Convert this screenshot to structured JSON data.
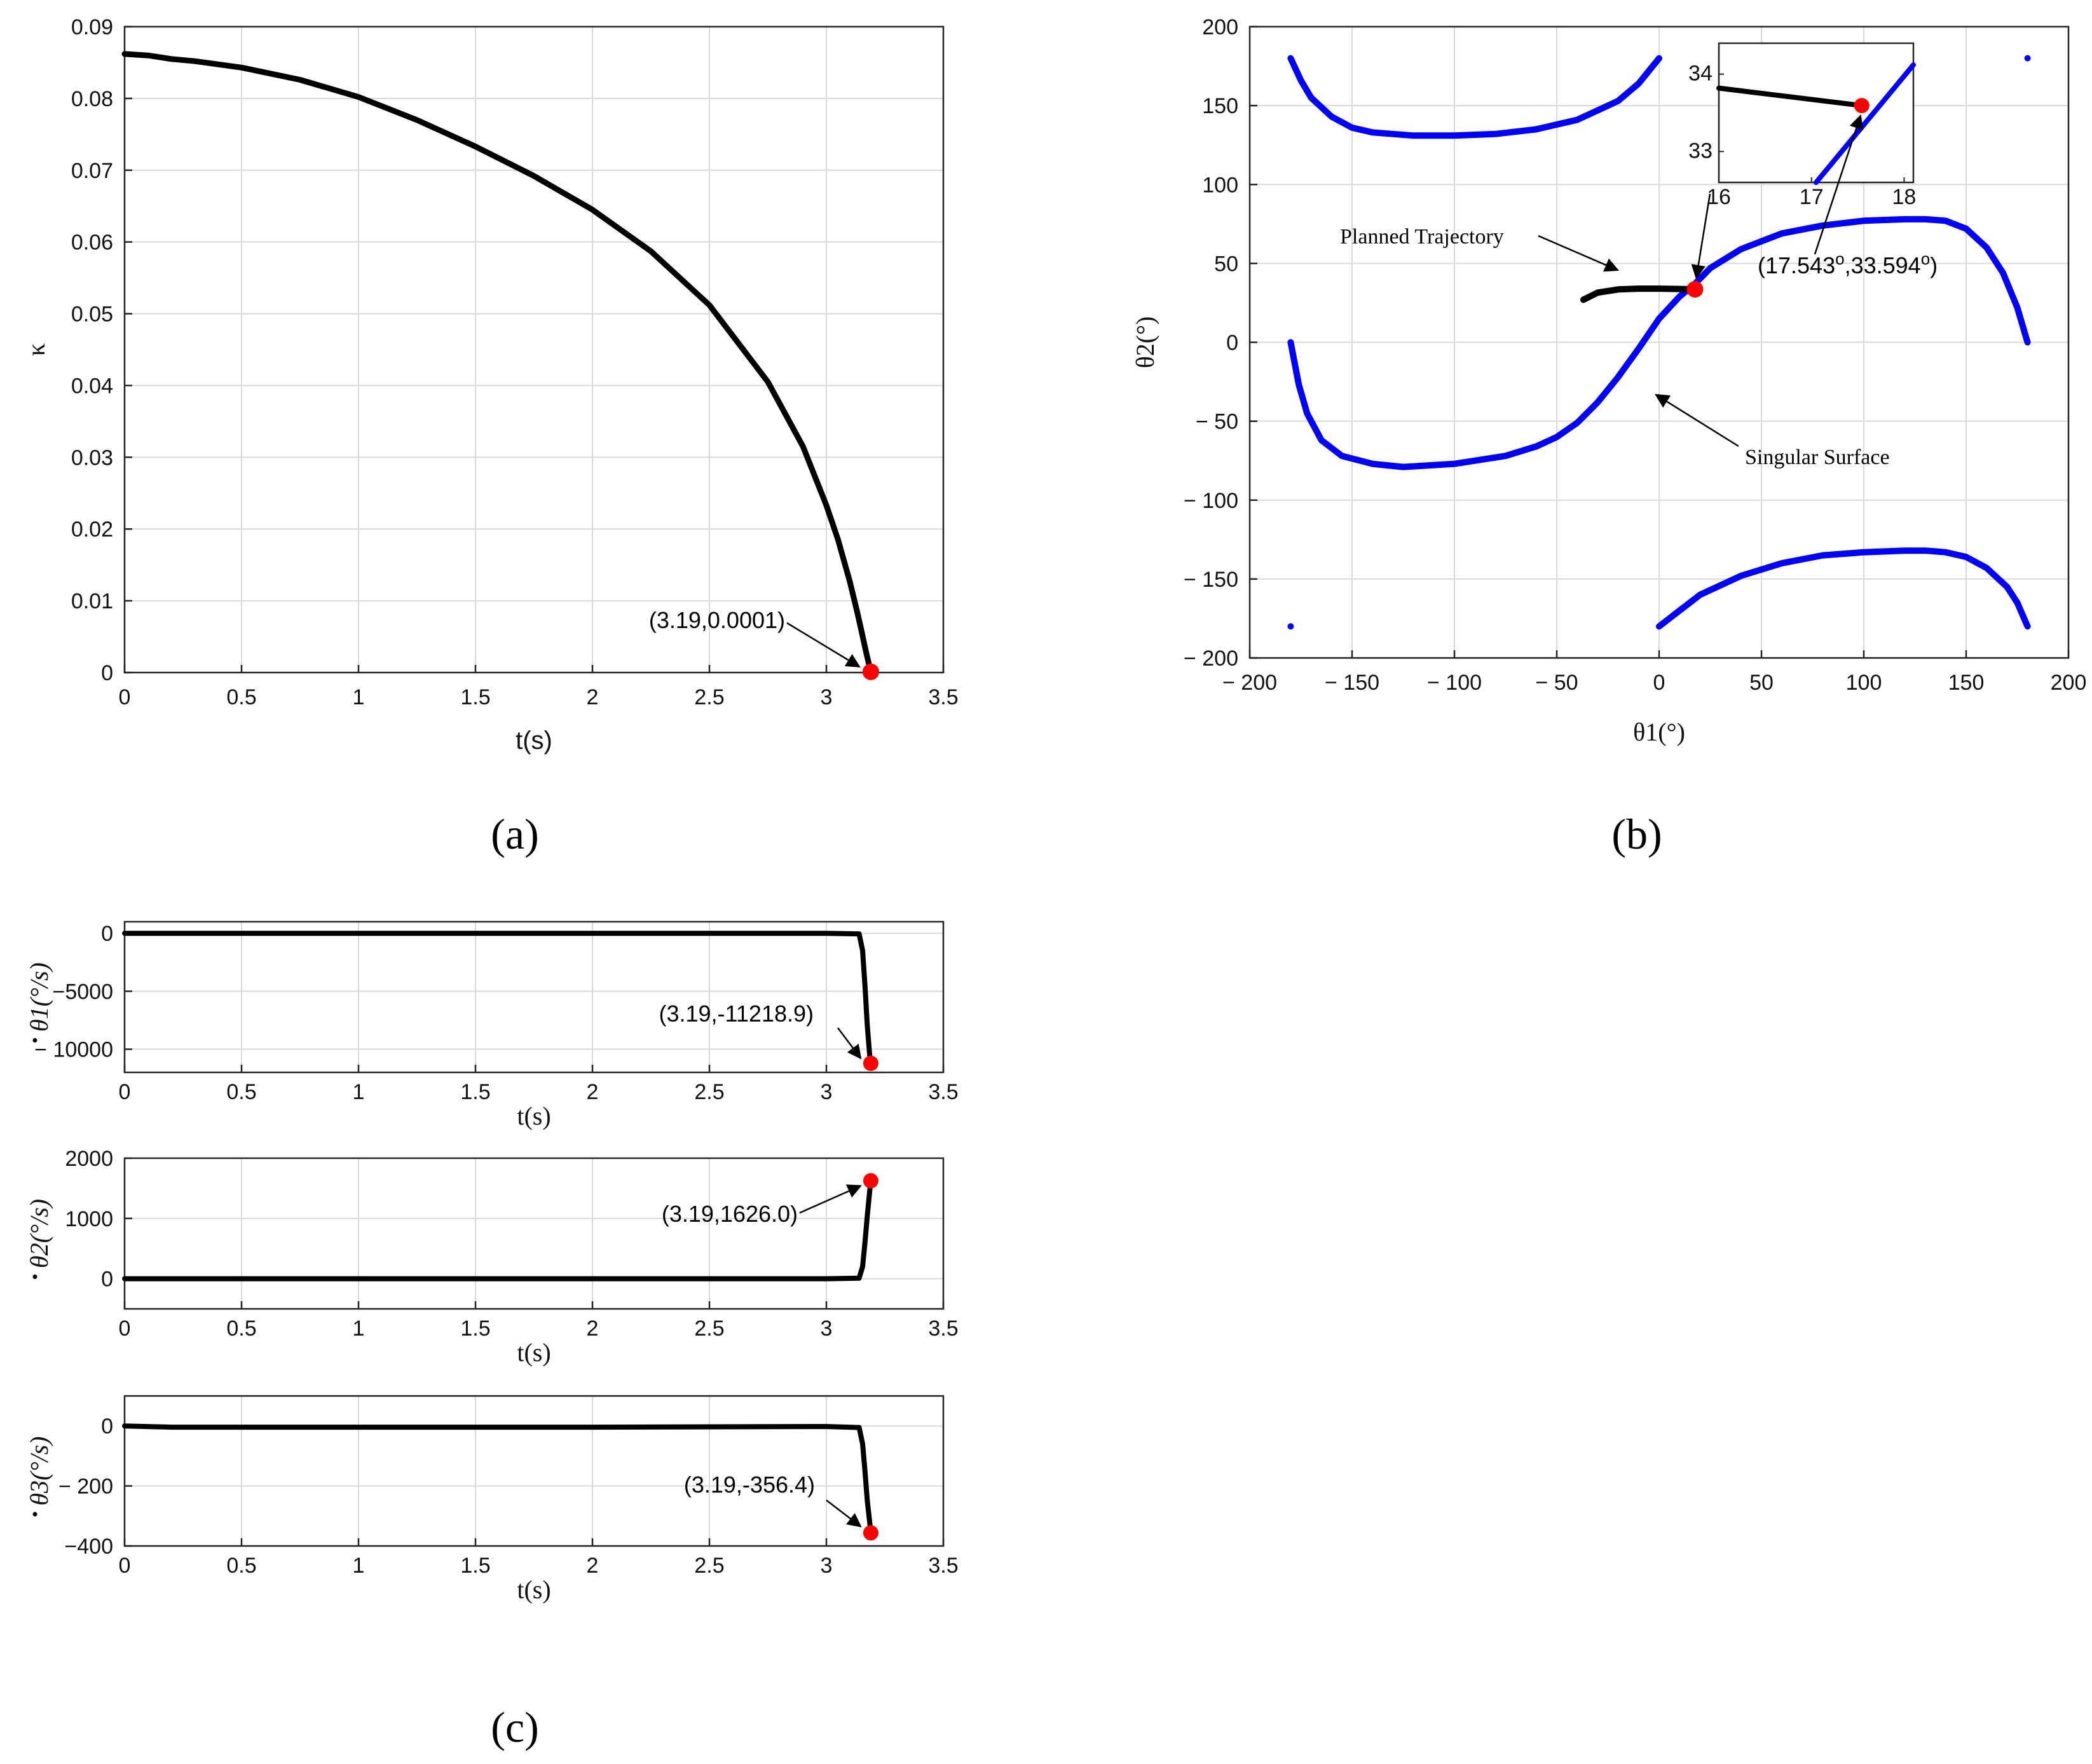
{
  "colors": {
    "trajectory": "#000000",
    "singular": "#0000ff",
    "marker": "#ff0000",
    "grid": "#d9d9d9"
  },
  "panel_labels": [
    "(a)",
    "(b)",
    "(c)"
  ],
  "chart_data": [
    {
      "id": "a",
      "type": "line",
      "xlabel": "t(s)",
      "ylabel": "κ",
      "xlim": [
        0,
        3.5
      ],
      "ylim": [
        0,
        0.09
      ],
      "xticks": [
        0,
        0.5,
        1,
        1.5,
        2,
        2.5,
        3,
        3.5
      ],
      "yticks": [
        0,
        0.01,
        0.02,
        0.03,
        0.04,
        0.05,
        0.06,
        0.07,
        0.08,
        0.09
      ],
      "grid": true,
      "series": [
        {
          "color": "#000000",
          "x": [
            0,
            0.1,
            0.2,
            0.3,
            0.5,
            0.75,
            1.0,
            1.25,
            1.5,
            1.75,
            2.0,
            2.25,
            2.5,
            2.75,
            2.9,
            3.0,
            3.05,
            3.1,
            3.13,
            3.15,
            3.17,
            3.19
          ],
          "y": [
            0.0862,
            0.086,
            0.0855,
            0.0852,
            0.0843,
            0.0826,
            0.0802,
            0.077,
            0.0733,
            0.0692,
            0.0645,
            0.0587,
            0.0512,
            0.0405,
            0.0315,
            0.0233,
            0.0185,
            0.0127,
            0.0087,
            0.0058,
            0.0028,
            0.0001
          ]
        }
      ],
      "annotations": [
        {
          "text": "(3.19,0.0001)",
          "x": 3.19,
          "y": 0.0001
        }
      ]
    },
    {
      "id": "b",
      "type": "line",
      "xlabel": "θ1(°)",
      "ylabel": "θ2(°)",
      "xlim": [
        -200,
        200
      ],
      "ylim": [
        -200,
        200
      ],
      "xticks": [
        -200,
        -150,
        -100,
        -50,
        0,
        50,
        100,
        150,
        200
      ],
      "yticks": [
        -200,
        -150,
        -100,
        -50,
        0,
        50,
        100,
        150,
        200
      ],
      "grid": true,
      "series": [
        {
          "color": "#0000ff",
          "x": [
            -180,
            -175,
            -170,
            -160,
            -150,
            -140,
            -120,
            -100,
            -80,
            -60,
            -40,
            -20,
            -10,
            0
          ],
          "y": [
            180,
            166,
            155,
            143,
            136,
            133,
            131,
            131,
            132,
            135,
            141,
            153,
            164,
            180
          ]
        },
        {
          "color": "#0000ff",
          "x": [
            -180,
            -176,
            -172,
            -165,
            -155,
            -140,
            -125,
            -100,
            -75,
            -60,
            -50,
            -40,
            -30,
            -20,
            -10,
            0,
            10,
            17.5,
            25,
            40,
            60,
            80,
            100,
            120,
            130,
            140,
            150,
            160,
            168,
            175,
            180
          ],
          "y": [
            0,
            -27,
            -45,
            -62,
            -72,
            -77,
            -79,
            -77,
            -72,
            -66,
            -60,
            -51,
            -38,
            -22,
            -4,
            15,
            29,
            37,
            47,
            59,
            69,
            74,
            77,
            78,
            78,
            77,
            72,
            60,
            44,
            22,
            0
          ]
        },
        {
          "color": "#0000ff",
          "x": [
            0,
            10,
            20,
            40,
            60,
            80,
            100,
            120,
            130,
            140,
            150,
            160,
            170,
            175,
            180
          ],
          "y": [
            -180,
            -170,
            -160,
            -148,
            -140,
            -135,
            -133,
            -132,
            -132,
            -133,
            -136,
            -143,
            -155,
            -165,
            -180
          ]
        },
        {
          "color": "#000000",
          "x": [
            -37,
            -30,
            -20,
            -10,
            0,
            10,
            17.543
          ],
          "y": [
            27,
            31.5,
            33.5,
            34,
            34,
            33.8,
            33.594
          ]
        }
      ],
      "points": [
        {
          "x": -180,
          "y": -180,
          "color": "#0000ff"
        },
        {
          "x": 180,
          "y": 180,
          "color": "#0000ff"
        }
      ],
      "annotations": [
        {
          "text": "Planned Trajectory"
        },
        {
          "text": "Singular Surface"
        },
        {
          "text_parts": [
            "(17.543",
            "o",
            ",33.594",
            "o",
            ")"
          ],
          "x": 17.543,
          "y": 33.594
        }
      ],
      "inset": {
        "xlim": [
          16,
          18.1
        ],
        "ylim": [
          32.6,
          34.4
        ],
        "xticks": [
          16,
          17,
          18
        ],
        "yticks": [
          33,
          34
        ],
        "series": [
          {
            "color": "#000000",
            "x": [
              16,
              17.543
            ],
            "y": [
              33.82,
              33.594
            ]
          },
          {
            "color": "#0000ff",
            "x": [
              17.05,
              18.1
            ],
            "y": [
              32.6,
              34.12
            ]
          }
        ],
        "marker": {
          "x": 17.543,
          "y": 33.594
        }
      }
    },
    {
      "id": "c1",
      "type": "line",
      "xlabel": "t(s)",
      "ylabel": "θ1(°/s)",
      "xlim": [
        0,
        3.5
      ],
      "ylim": [
        -12000,
        1000
      ],
      "xticks": [
        0,
        0.5,
        1,
        1.5,
        2,
        2.5,
        3,
        3.5
      ],
      "yticks": [
        -10000,
        -5000,
        0
      ],
      "ytick_labels": [
        "− 10000",
        "−5000",
        "0"
      ],
      "grid": true,
      "series": [
        {
          "color": "#000000",
          "x": [
            0,
            1,
            2,
            3,
            3.14,
            3.155,
            3.165,
            3.175,
            3.185,
            3.19
          ],
          "y": [
            0,
            0,
            0,
            0,
            -50,
            -1500,
            -4500,
            -8000,
            -10500,
            -11218.9
          ]
        }
      ],
      "annotations": [
        {
          "text": "(3.19,-11218.9)",
          "x": 3.19,
          "y": -11218.9
        }
      ]
    },
    {
      "id": "c2",
      "type": "line",
      "xlabel": "t(s)",
      "ylabel": "θ2(°/s)",
      "xlim": [
        0,
        3.5
      ],
      "ylim": [
        -500,
        2000
      ],
      "xticks": [
        0,
        0.5,
        1,
        1.5,
        2,
        2.5,
        3,
        3.5
      ],
      "yticks": [
        0,
        1000,
        2000
      ],
      "ytick_labels": [
        "0",
        "1000",
        "2000"
      ],
      "grid": true,
      "series": [
        {
          "color": "#000000",
          "x": [
            0,
            1,
            2,
            3,
            3.14,
            3.155,
            3.165,
            3.175,
            3.185,
            3.19
          ],
          "y": [
            0,
            0,
            0,
            0,
            10,
            200,
            600,
            1050,
            1450,
            1626.0
          ]
        }
      ],
      "annotations": [
        {
          "text": "(3.19,1626.0)",
          "x": 3.19,
          "y": 1626.0
        }
      ]
    },
    {
      "id": "c3",
      "type": "line",
      "xlabel": "t(s)",
      "ylabel": "θ3(°/s)",
      "xlim": [
        0,
        3.5
      ],
      "ylim": [
        -400,
        100
      ],
      "xticks": [
        0,
        0.5,
        1,
        1.5,
        2,
        2.5,
        3,
        3.5
      ],
      "yticks": [
        -400,
        -200,
        0
      ],
      "ytick_labels": [
        "−400",
        "− 200",
        "0"
      ],
      "grid": true,
      "series": [
        {
          "color": "#000000",
          "x": [
            0,
            0.15,
            0.2,
            1,
            2,
            3,
            3.14,
            3.155,
            3.165,
            3.175,
            3.185,
            3.19
          ],
          "y": [
            0,
            -3,
            -4,
            -4,
            -4,
            -2,
            -5,
            -60,
            -150,
            -250,
            -320,
            -356.4
          ]
        }
      ],
      "annotations": [
        {
          "text": "(3.19,-356.4)",
          "x": 3.19,
          "y": -356.4
        }
      ]
    }
  ]
}
